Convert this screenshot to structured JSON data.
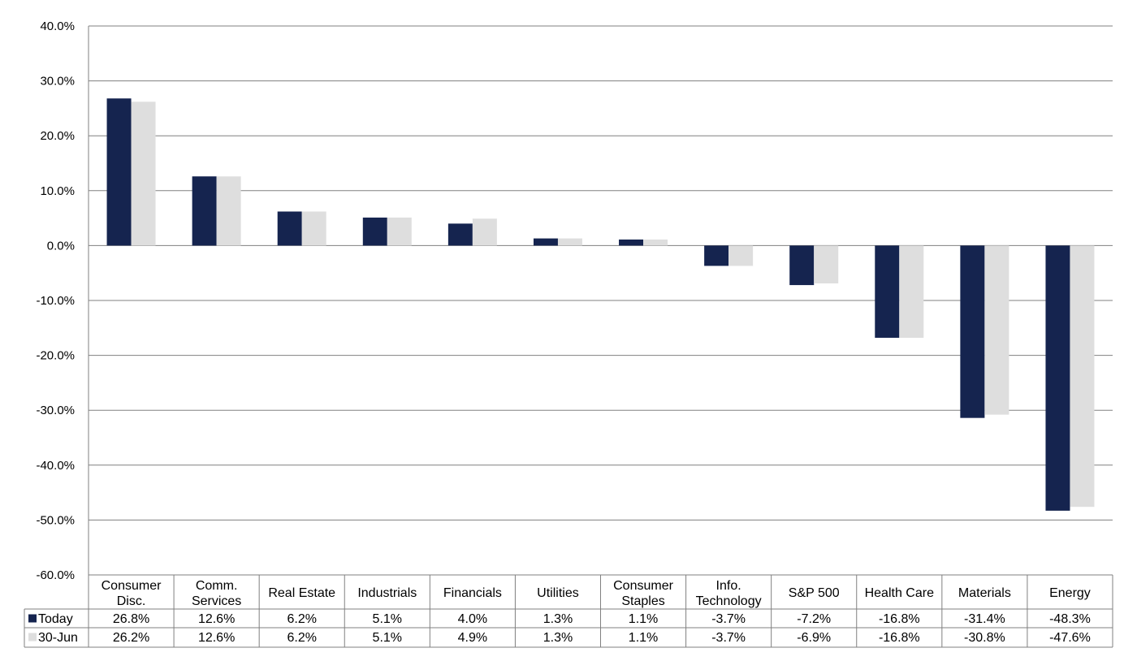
{
  "chart_data": {
    "type": "bar",
    "categories": [
      [
        "Consumer",
        "Disc."
      ],
      [
        "Comm.",
        "Services"
      ],
      [
        "Real Estate"
      ],
      [
        "Industrials"
      ],
      [
        "Financials"
      ],
      [
        "Utilities"
      ],
      [
        "Consumer",
        "Staples"
      ],
      [
        "Info.",
        "Technology"
      ],
      [
        "S&P 500"
      ],
      [
        "Health Care"
      ],
      [
        "Materials"
      ],
      [
        "Energy"
      ]
    ],
    "series": [
      {
        "name": "Today",
        "color": "#15244f",
        "values": [
          26.8,
          12.6,
          6.2,
          5.1,
          4.0,
          1.3,
          1.1,
          -3.7,
          -7.2,
          -16.8,
          -31.4,
          -48.3
        ],
        "labels": [
          "26.8%",
          "12.6%",
          "6.2%",
          "5.1%",
          "4.0%",
          "1.3%",
          "1.1%",
          "-3.7%",
          "-7.2%",
          "-16.8%",
          "-31.4%",
          "-48.3%"
        ]
      },
      {
        "name": "30-Jun",
        "color": "#dedede",
        "values": [
          26.2,
          12.6,
          6.2,
          5.1,
          4.9,
          1.3,
          1.1,
          -3.7,
          -6.9,
          -16.8,
          -30.8,
          -47.6
        ],
        "labels": [
          "26.2%",
          "12.6%",
          "6.2%",
          "5.1%",
          "4.9%",
          "1.3%",
          "1.1%",
          "-3.7%",
          "-6.9%",
          "-16.8%",
          "-30.8%",
          "-47.6%"
        ]
      }
    ],
    "ylim": [
      -60,
      40
    ],
    "yticks": [
      40,
      30,
      20,
      10,
      0,
      -10,
      -20,
      -30,
      -40,
      -50,
      -60
    ],
    "ytick_labels": [
      "40.0%",
      "30.0%",
      "20.0%",
      "10.0%",
      "0.0%",
      "-10.0%",
      "-20.0%",
      "-30.0%",
      "-40.0%",
      "-50.0%",
      "-60.0%"
    ],
    "grid": true,
    "legend": "data-table"
  }
}
